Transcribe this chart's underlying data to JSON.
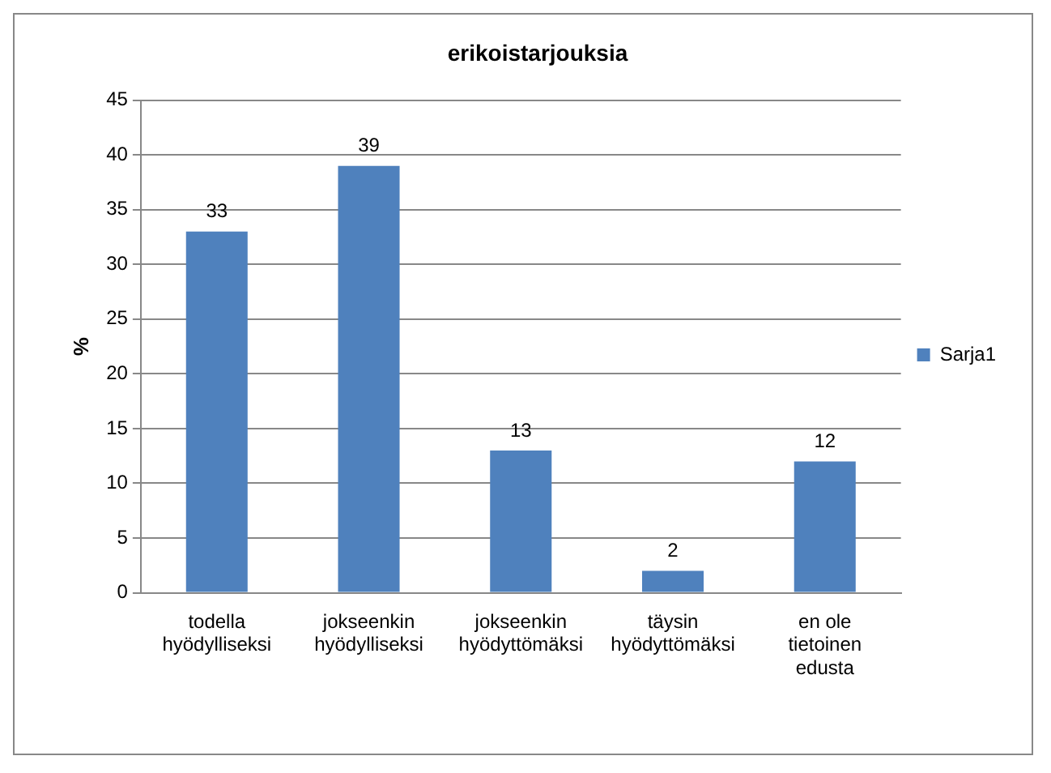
{
  "chart_data": {
    "type": "bar",
    "title": "erikoistarjouksia",
    "ylabel": "%",
    "categories": [
      "todella hyödylliseksi",
      "jokseenkin hyödylliseksi",
      "jokseenkin hyödyttömäksi",
      "täysin hyödyttömäksi",
      "en ole tietoinen edusta"
    ],
    "series": [
      {
        "name": "Sarja1",
        "color": "#4f81bd",
        "values": [
          33,
          39,
          13,
          2,
          12
        ]
      }
    ],
    "ylim": [
      0,
      45
    ],
    "yticks": [
      0,
      5,
      10,
      15,
      20,
      25,
      30,
      35,
      40,
      45
    ],
    "grid": "y",
    "legend": "right",
    "data_labels": true
  }
}
